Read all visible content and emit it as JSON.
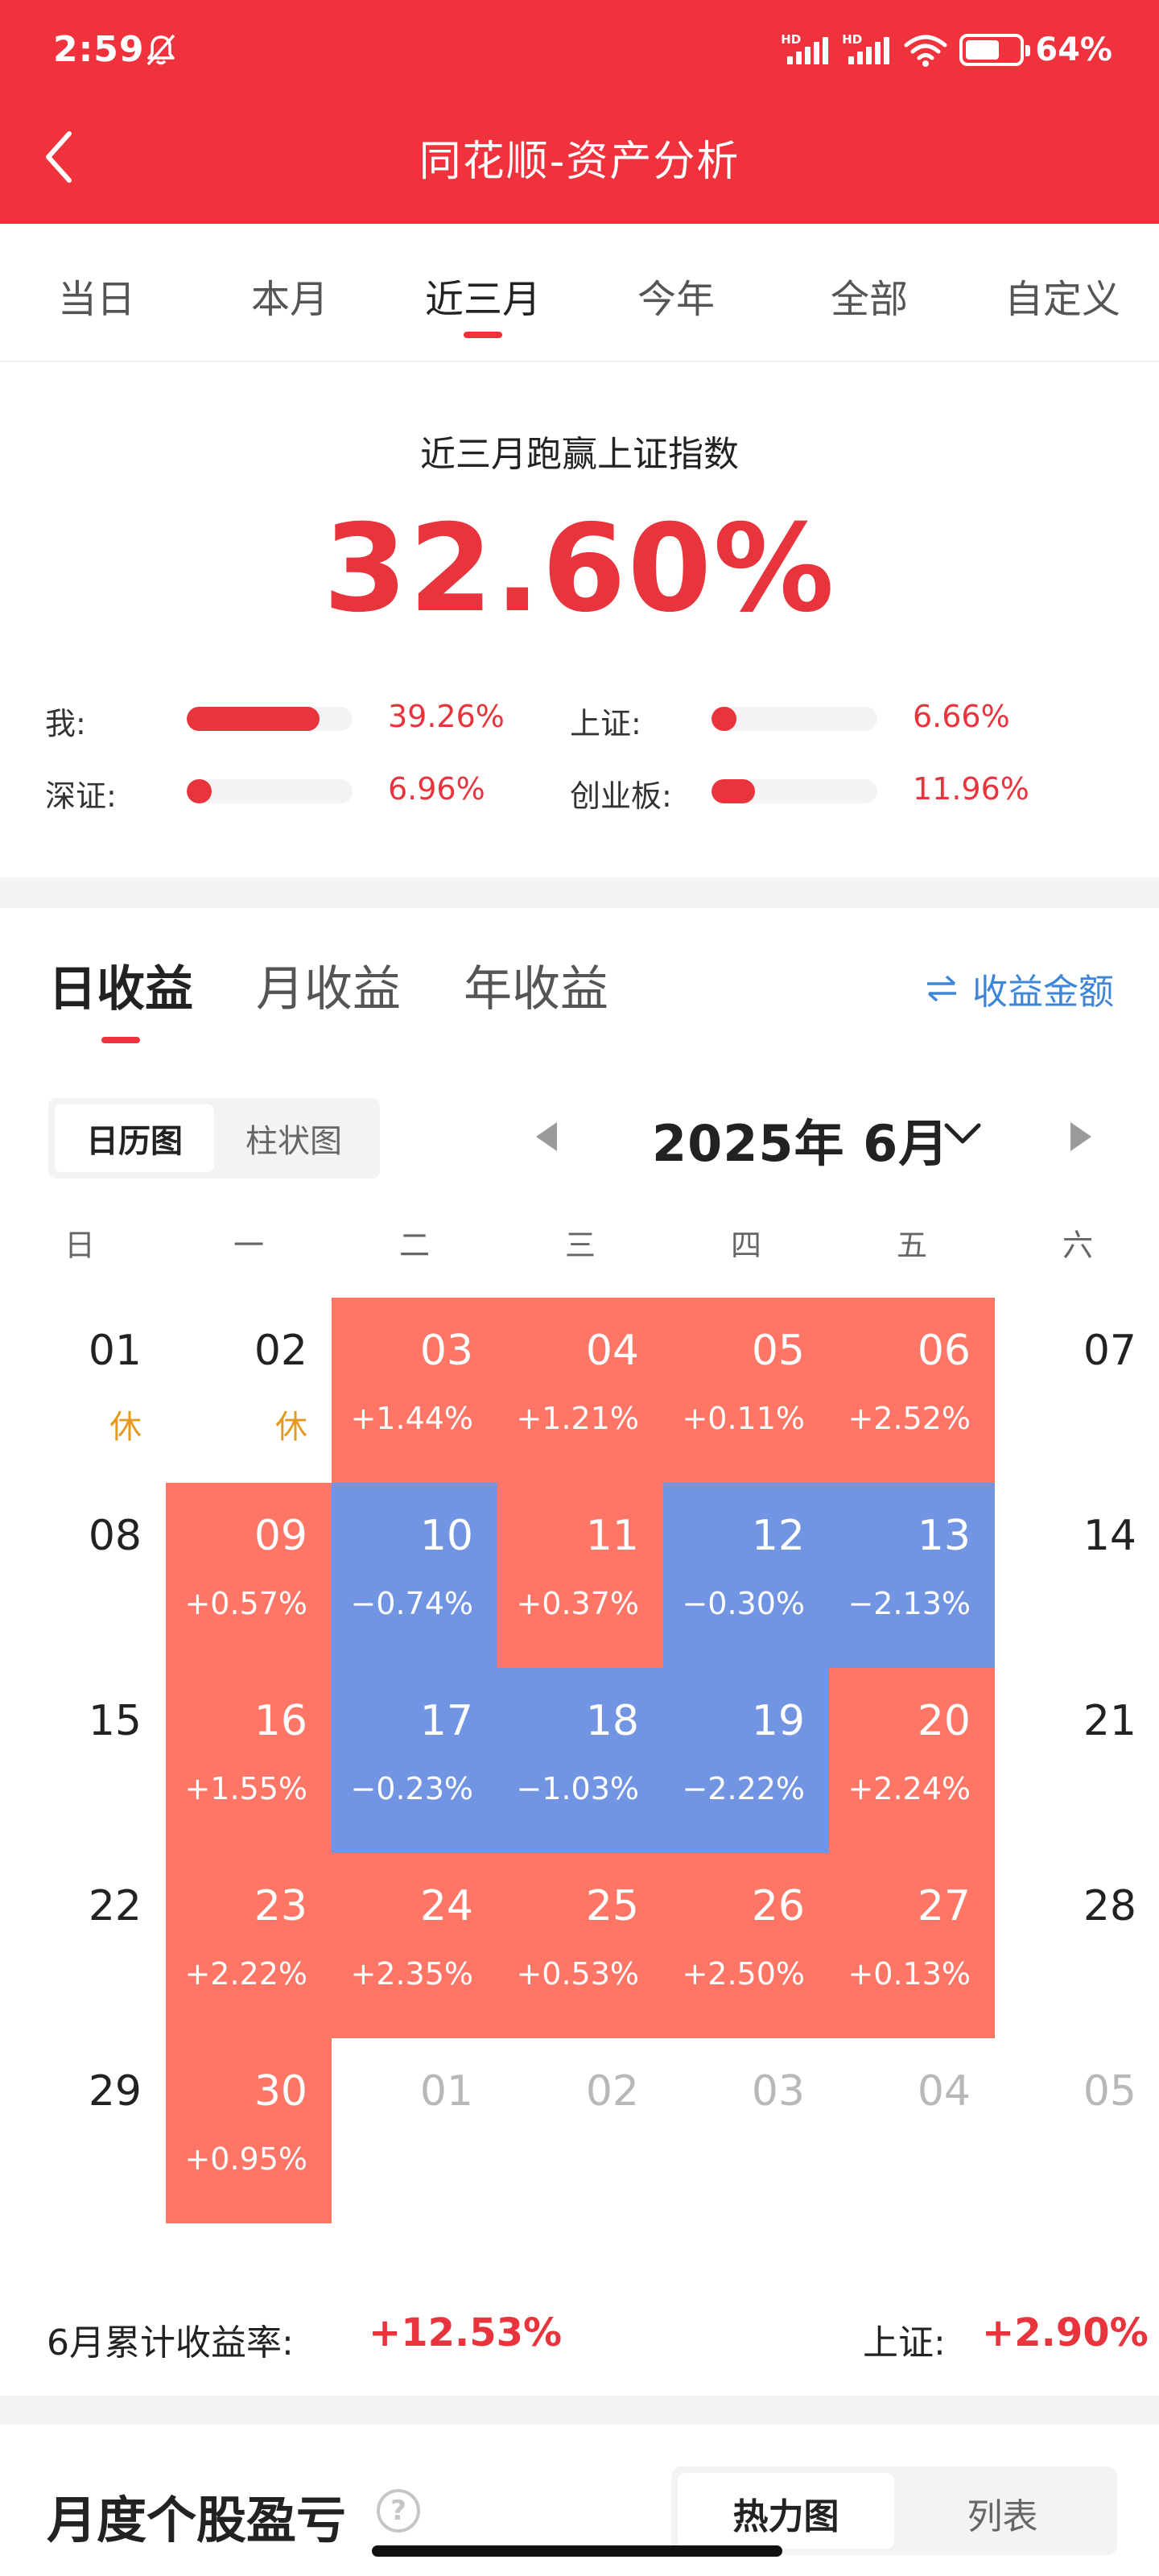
{
  "status": {
    "time": "2:59",
    "battery": "64%",
    "battery_level": 0.64,
    "signal_tag": "HD"
  },
  "header": {
    "title": "同花顺-资产分析"
  },
  "period_tabs": [
    {
      "label": "当日"
    },
    {
      "label": "本月"
    },
    {
      "label": "近三月"
    },
    {
      "label": "今年"
    },
    {
      "label": "全部"
    },
    {
      "label": "自定义"
    }
  ],
  "period_active": "近三月",
  "summary": {
    "headline": "近三月跑赢上证指数",
    "value": "32.60%",
    "comparisons": [
      {
        "label": "我:",
        "value": "39.26%",
        "level": 0.8
      },
      {
        "label": "上证:",
        "value": "6.66%",
        "level": 0.15
      },
      {
        "label": "深证:",
        "value": "6.96%",
        "level": 0.15
      },
      {
        "label": "创业板:",
        "value": "11.96%",
        "level": 0.26
      }
    ]
  },
  "earnings_tabs": [
    {
      "label": "日收益"
    },
    {
      "label": "月收益"
    },
    {
      "label": "年收益"
    }
  ],
  "amount_toggle": "收益金额",
  "view_toggle": [
    {
      "label": "日历图"
    },
    {
      "label": "柱状图"
    }
  ],
  "calendar": {
    "month_label": "2025年 6月",
    "weekdays": [
      "日",
      "一",
      "二",
      "三",
      "四",
      "五",
      "六"
    ],
    "weeks": [
      [
        {
          "d": "01",
          "rest": "休"
        },
        {
          "d": "02",
          "rest": "休"
        },
        {
          "d": "03",
          "ret": "+1.44%",
          "t": "pos"
        },
        {
          "d": "04",
          "ret": "+1.21%",
          "t": "pos"
        },
        {
          "d": "05",
          "ret": "+0.11%",
          "t": "pos"
        },
        {
          "d": "06",
          "ret": "+2.52%",
          "t": "pos"
        },
        {
          "d": "07"
        }
      ],
      [
        {
          "d": "08"
        },
        {
          "d": "09",
          "ret": "+0.57%",
          "t": "pos"
        },
        {
          "d": "10",
          "ret": "−0.74%",
          "t": "neg"
        },
        {
          "d": "11",
          "ret": "+0.37%",
          "t": "pos"
        },
        {
          "d": "12",
          "ret": "−0.30%",
          "t": "neg"
        },
        {
          "d": "13",
          "ret": "−2.13%",
          "t": "neg"
        },
        {
          "d": "14"
        }
      ],
      [
        {
          "d": "15"
        },
        {
          "d": "16",
          "ret": "+1.55%",
          "t": "pos"
        },
        {
          "d": "17",
          "ret": "−0.23%",
          "t": "neg"
        },
        {
          "d": "18",
          "ret": "−1.03%",
          "t": "neg"
        },
        {
          "d": "19",
          "ret": "−2.22%",
          "t": "neg"
        },
        {
          "d": "20",
          "ret": "+2.24%",
          "t": "pos"
        },
        {
          "d": "21"
        }
      ],
      [
        {
          "d": "22"
        },
        {
          "d": "23",
          "ret": "+2.22%",
          "t": "pos"
        },
        {
          "d": "24",
          "ret": "+2.35%",
          "t": "pos"
        },
        {
          "d": "25",
          "ret": "+0.53%",
          "t": "pos"
        },
        {
          "d": "26",
          "ret": "+2.50%",
          "t": "pos"
        },
        {
          "d": "27",
          "ret": "+0.13%",
          "t": "pos"
        },
        {
          "d": "28"
        }
      ],
      [
        {
          "d": "29"
        },
        {
          "d": "30",
          "ret": "+0.95%",
          "t": "pos"
        },
        {
          "d": "01",
          "t": "other"
        },
        {
          "d": "02",
          "t": "other"
        },
        {
          "d": "03",
          "t": "other"
        },
        {
          "d": "04",
          "t": "other"
        },
        {
          "d": "05",
          "t": "other"
        }
      ]
    ]
  },
  "cumulative": {
    "label": "6月累计收益率:",
    "value": "+12.53%",
    "index_label": "上证:",
    "index_value": "+2.90%"
  },
  "monthly": {
    "title": "月度个股盈亏",
    "toggle": [
      {
        "label": "热力图"
      },
      {
        "label": "列表"
      }
    ]
  },
  "colors": {
    "header_red": "#f0323c",
    "gain": "#ff7666",
    "loss": "#7195e3",
    "accent_blue": "#3f86d6",
    "rest_orange": "#e39a1e"
  }
}
